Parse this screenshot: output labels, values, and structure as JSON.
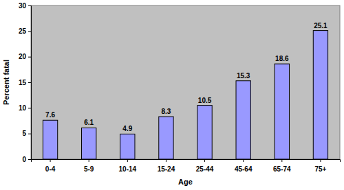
{
  "chart_data": {
    "type": "bar",
    "x_label": "Age",
    "y_label": "Percent fatal",
    "categories": [
      "0-4",
      "5-9",
      "10-14",
      "15-24",
      "25-44",
      "45-64",
      "65-74",
      "75+"
    ],
    "values": [
      7.6,
      6.1,
      4.9,
      8.3,
      10.5,
      15.3,
      18.6,
      25.1
    ],
    "color": "#9999ff",
    "ylim": [
      0,
      30
    ],
    "yticks": [
      0,
      5,
      10,
      15,
      20,
      25,
      30
    ],
    "grid": false,
    "data_labels": true
  }
}
